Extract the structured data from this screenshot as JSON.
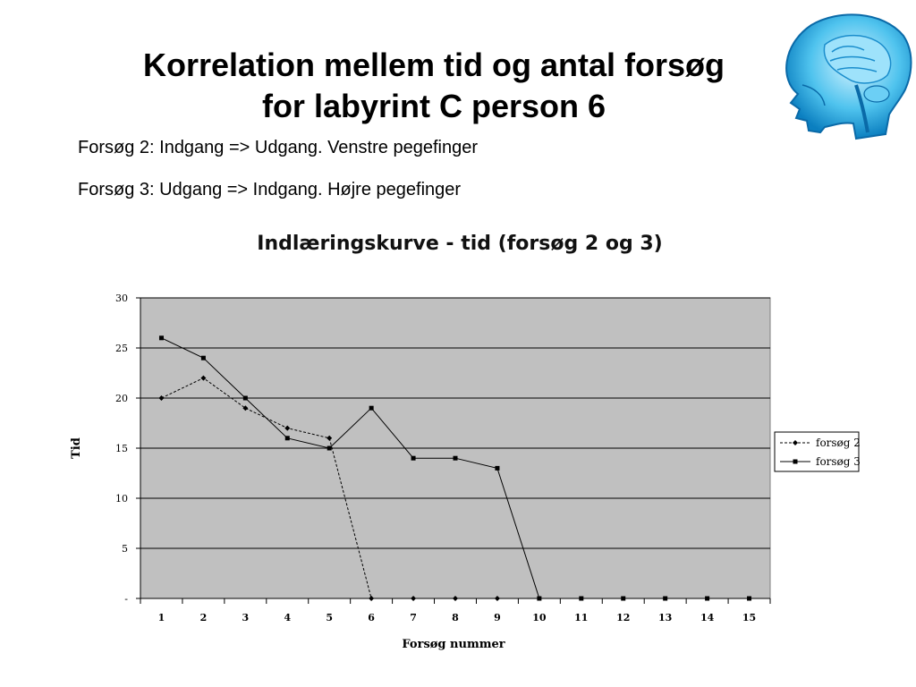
{
  "slide": {
    "title_line1": "Korrelation mellem tid og antal forsøg",
    "title_line2": "for labyrint C person 6",
    "note1": "Forsøg 2: Indgang => Udgang. Venstre pegefinger",
    "note2": "Forsøg 3: Udgang => Indgang. Højre pegefinger"
  },
  "colors": {
    "plot_bg": "#c0c0c0",
    "gridline": "#000000",
    "series": "#000000"
  },
  "chart_data": {
    "type": "line",
    "title": "Indlæringskurve - tid (forsøg 2 og 3)",
    "xlabel": "Forsøg nummer",
    "ylabel": "Tid",
    "x": [
      1,
      2,
      3,
      4,
      5,
      6,
      7,
      8,
      9,
      10,
      11,
      12,
      13,
      14,
      15
    ],
    "ylim": [
      0,
      30
    ],
    "yticks": [
      0,
      5,
      10,
      15,
      20,
      25,
      30
    ],
    "ytick_labels": [
      "-",
      "5",
      "10",
      "15",
      "20",
      "25",
      "30"
    ],
    "grid": true,
    "legend_position": "right",
    "series": [
      {
        "name": "forsøg 2",
        "style": "dashed",
        "marker": "diamond",
        "values": [
          20,
          22,
          19,
          17,
          16,
          0,
          0,
          0,
          0,
          null,
          null,
          null,
          null,
          null,
          null
        ]
      },
      {
        "name": "forsøg 3",
        "style": "solid",
        "marker": "square",
        "values": [
          26,
          24,
          20,
          16,
          15,
          19,
          14,
          14,
          13,
          0,
          0,
          0,
          0,
          0,
          0
        ]
      }
    ]
  }
}
